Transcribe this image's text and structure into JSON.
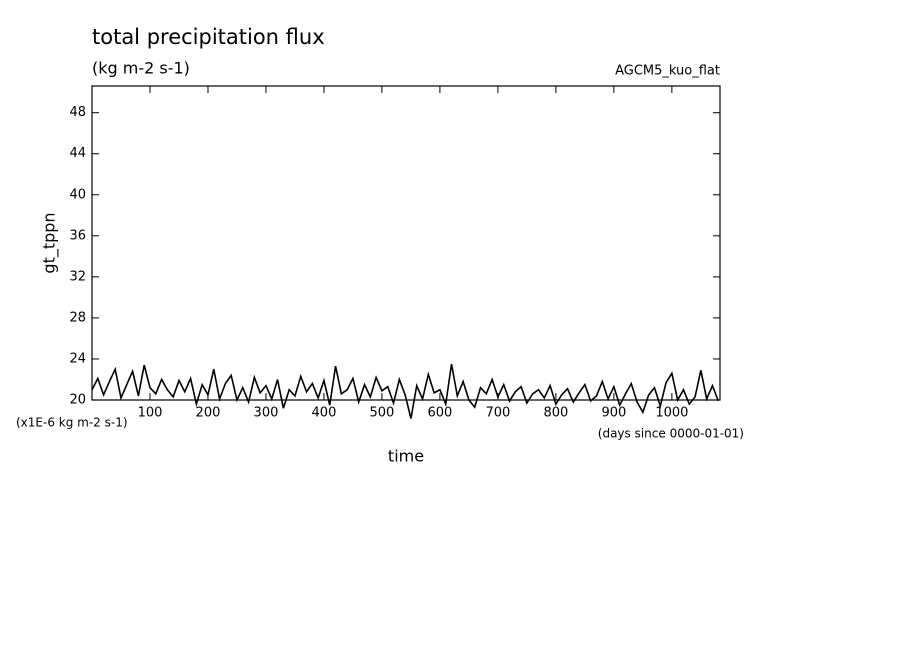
{
  "chart_data": {
    "type": "line",
    "title": "total precipitation flux",
    "subtitle": "(kg m-2 s-1)",
    "annotation": "AGCM5_kuo_flat",
    "y_label": "gt_tppn",
    "x_label": "time",
    "y_unit_note": "(x1E-6 kg m-2 s-1)",
    "x_unit_note": "(days since 0000-01-01)",
    "x": [
      0,
      10,
      20,
      30,
      40,
      50,
      60,
      70,
      80,
      90,
      100,
      110,
      120,
      130,
      140,
      150,
      160,
      170,
      180,
      190,
      200,
      210,
      220,
      230,
      240,
      250,
      260,
      270,
      280,
      290,
      300,
      310,
      320,
      330,
      340,
      350,
      360,
      370,
      380,
      390,
      400,
      410,
      420,
      430,
      440,
      450,
      460,
      470,
      480,
      490,
      500,
      510,
      520,
      530,
      540,
      550,
      560,
      570,
      580,
      590,
      600,
      610,
      620,
      630,
      640,
      650,
      660,
      670,
      680,
      690,
      700,
      710,
      720,
      730,
      740,
      750,
      760,
      770,
      780,
      790,
      800,
      810,
      820,
      830,
      840,
      850,
      860,
      870,
      880,
      890,
      900,
      910,
      920,
      930,
      940,
      950,
      960,
      970,
      980,
      990,
      1000,
      1010,
      1020,
      1030,
      1040,
      1050,
      1060,
      1070,
      1080
    ],
    "series": [
      {
        "color": "#000000",
        "values": [
          21.0,
          22.1,
          20.5,
          21.8,
          23.0,
          20.2,
          21.5,
          22.8,
          20.4,
          23.4,
          21.2,
          20.6,
          22.0,
          21.0,
          20.3,
          21.9,
          20.8,
          22.1,
          19.6,
          21.5,
          20.5,
          23.0,
          20.1,
          21.6,
          22.4,
          20.0,
          21.2,
          19.8,
          22.2,
          20.7,
          21.4,
          20.1,
          22.0,
          19.2,
          21.0,
          20.4,
          22.3,
          20.8,
          21.6,
          20.2,
          21.9,
          19.5,
          23.3,
          20.6,
          21.0,
          22.1,
          19.8,
          21.5,
          20.3,
          22.2,
          20.9,
          21.3,
          19.7,
          22.0,
          20.5,
          18.2,
          21.4,
          20.1,
          22.5,
          20.7,
          21.0,
          19.6,
          23.5,
          20.4,
          21.8,
          20.0,
          19.3,
          21.2,
          20.6,
          22.0,
          20.3,
          21.5,
          19.9,
          20.8,
          21.3,
          19.7,
          20.6,
          21.0,
          20.2,
          21.4,
          19.6,
          20.5,
          21.1,
          19.8,
          20.7,
          21.5,
          19.9,
          20.4,
          21.8,
          20.1,
          21.3,
          19.5,
          20.6,
          21.6,
          19.8,
          18.8,
          20.5,
          21.2,
          19.4,
          21.7,
          22.6,
          20.0,
          21.0,
          19.6,
          20.3,
          22.9,
          20.1,
          21.4,
          19.9
        ]
      }
    ],
    "xlim": [
      0,
      1083
    ],
    "ylim": [
      20,
      50.6
    ],
    "xticks": [
      100,
      200,
      300,
      400,
      500,
      600,
      700,
      800,
      900,
      1000
    ],
    "yticks": [
      20,
      24,
      28,
      32,
      36,
      40,
      44,
      48
    ]
  }
}
